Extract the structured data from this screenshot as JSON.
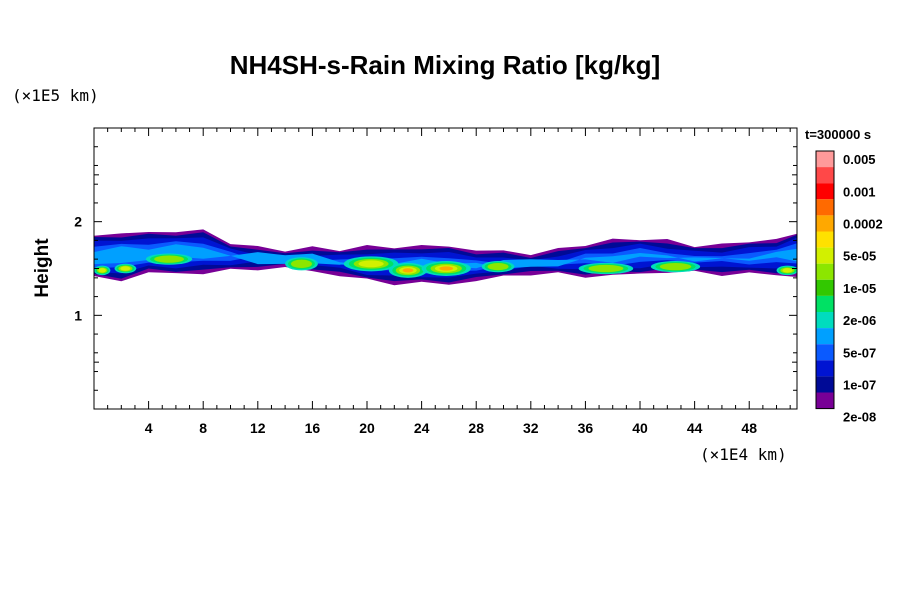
{
  "chart_data": {
    "type": "heatmap",
    "title": "NH4SH-s-Rain Mixing Ratio [kg/kg]",
    "ylabel": "Height",
    "x_unit": "(×1E4 km)",
    "y_unit": "(×1E5 km)",
    "time_label": "t=300000 s",
    "xlim": [
      0,
      51.5
    ],
    "ylim": [
      0,
      3
    ],
    "x_ticks": [
      "4",
      "8",
      "12",
      "16",
      "20",
      "24",
      "28",
      "32",
      "36",
      "40",
      "44",
      "48"
    ],
    "y_ticks": [
      "1",
      "2"
    ],
    "colorbar_labels": [
      "0.005",
      "0.001",
      "0.0002",
      "5e-05",
      "1e-05",
      "2e-06",
      "5e-07",
      "1e-07",
      "2e-08"
    ],
    "colorbar_colors": [
      "#ff9a9a",
      "#ff4848",
      "#ff0000",
      "#ff6a00",
      "#ffa800",
      "#ffe100",
      "#d2f000",
      "#8ce600",
      "#32c800",
      "#00e164",
      "#00dcbe",
      "#00a0ff",
      "#0a5aff",
      "#0014d2",
      "#000a96",
      "#780096"
    ],
    "band": {
      "x": [
        0,
        2,
        4,
        6,
        8,
        10,
        12,
        14,
        16,
        18,
        20,
        22,
        24,
        26,
        28,
        30,
        32,
        34,
        36,
        38,
        40,
        42,
        44,
        46,
        48,
        50,
        51.5
      ],
      "top": [
        1.85,
        1.88,
        1.88,
        1.9,
        1.9,
        1.78,
        1.72,
        1.7,
        1.72,
        1.7,
        1.74,
        1.72,
        1.75,
        1.73,
        1.7,
        1.68,
        1.66,
        1.7,
        1.76,
        1.8,
        1.82,
        1.8,
        1.74,
        1.76,
        1.78,
        1.82,
        1.88
      ],
      "bottom": [
        1.4,
        1.38,
        1.45,
        1.45,
        1.45,
        1.48,
        1.5,
        1.5,
        1.48,
        1.42,
        1.38,
        1.34,
        1.34,
        1.34,
        1.36,
        1.42,
        1.44,
        1.44,
        1.42,
        1.42,
        1.45,
        1.46,
        1.46,
        1.44,
        1.44,
        1.44,
        1.42
      ]
    },
    "cores": [
      {
        "x": 5.5,
        "y": 1.6,
        "rx": 1.7,
        "ry": 0.06,
        "level": 1e-05
      },
      {
        "x": 2.3,
        "y": 1.5,
        "rx": 0.8,
        "ry": 0.05,
        "level": 5e-05
      },
      {
        "x": 0.6,
        "y": 1.48,
        "rx": 0.6,
        "ry": 0.05,
        "level": 5e-05
      },
      {
        "x": 15.2,
        "y": 1.55,
        "rx": 1.2,
        "ry": 0.07,
        "level": 1e-05
      },
      {
        "x": 20.3,
        "y": 1.55,
        "rx": 2.0,
        "ry": 0.08,
        "level": 5e-05
      },
      {
        "x": 23.0,
        "y": 1.48,
        "rx": 1.4,
        "ry": 0.08,
        "level": 0.0002
      },
      {
        "x": 25.8,
        "y": 1.5,
        "rx": 1.8,
        "ry": 0.08,
        "level": 0.0002
      },
      {
        "x": 29.6,
        "y": 1.52,
        "rx": 1.2,
        "ry": 0.06,
        "level": 1e-05
      },
      {
        "x": 37.5,
        "y": 1.5,
        "rx": 2.0,
        "ry": 0.06,
        "level": 1e-05
      },
      {
        "x": 42.6,
        "y": 1.52,
        "rx": 1.8,
        "ry": 0.06,
        "level": 1e-05
      },
      {
        "x": 50.8,
        "y": 1.48,
        "rx": 0.8,
        "ry": 0.05,
        "level": 5e-05
      }
    ]
  }
}
